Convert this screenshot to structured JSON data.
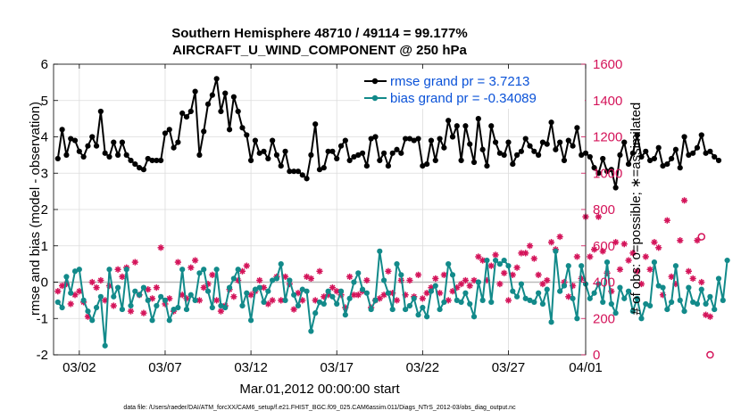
{
  "chart_data": {
    "type": "line",
    "title": "Southern Hemisphere 48710 / 49114 = 99.177%",
    "subtitle": "AIRCRAFT_U_WIND_COMPONENT @ 250 hPa",
    "xlabel": "Mar.01,2012 00:00:00 start",
    "ylabel": "rmse and bias (model - observation)",
    "y2label": "# of obs: o=possible; ∗=assimilated",
    "xlim": [
      1.5,
      32.5
    ],
    "ylim": [
      -2,
      6
    ],
    "y2lim": [
      0,
      1600
    ],
    "x_ticks": [
      {
        "x": 3,
        "label": "03/02"
      },
      {
        "x": 8,
        "label": "03/07"
      },
      {
        "x": 13,
        "label": "03/12"
      },
      {
        "x": 18,
        "label": "03/17"
      },
      {
        "x": 23,
        "label": "03/22"
      },
      {
        "x": 28,
        "label": "03/27"
      },
      {
        "x": 32.5,
        "label": "04/01"
      }
    ],
    "y_ticks": [
      -2,
      -1,
      0,
      1,
      2,
      3,
      4,
      5,
      6
    ],
    "y2_ticks": [
      0,
      200,
      400,
      600,
      800,
      1000,
      1200,
      1400,
      1600
    ],
    "colors": {
      "rmse": "#000000",
      "bias": "#128a8a",
      "obs": "#d4145a",
      "zero": "#bbbbbb",
      "grid": "#dcdcdc",
      "legend_text": "#0a52d8"
    },
    "legend": [
      {
        "label": "rmse grand pr = 3.7213",
        "series": "rmse"
      },
      {
        "label": "bias grand pr = -0.34089",
        "series": "bias"
      }
    ],
    "x_start": 1.75,
    "x_step": 0.25,
    "series": [
      {
        "name": "rmse",
        "axis": "left",
        "values": [
          3.4,
          4.2,
          3.5,
          3.95,
          3.9,
          3.6,
          3.45,
          3.75,
          4.0,
          3.75,
          4.7,
          3.55,
          3.45,
          3.85,
          3.5,
          3.85,
          3.5,
          3.35,
          3.25,
          3.15,
          3.1,
          3.4,
          3.35,
          3.35,
          3.35,
          4.1,
          4.2,
          3.7,
          3.85,
          4.65,
          4.55,
          4.7,
          5.25,
          3.5,
          4.15,
          4.9,
          5.15,
          5.6,
          4.7,
          5.2,
          4.2,
          5.1,
          4.7,
          4.25,
          4.05,
          3.35,
          3.9,
          3.55,
          3.6,
          3.4,
          3.9,
          3.5,
          3.2,
          3.6,
          3.05,
          3.05,
          3.05,
          2.95,
          2.85,
          3.5,
          4.35,
          3.1,
          3.15,
          3.6,
          3.6,
          3.4,
          3.75,
          3.9,
          3.35,
          3.45,
          3.5,
          3.55,
          3.2,
          3.95,
          4.0,
          3.35,
          3.55,
          3.2,
          3.55,
          3.65,
          3.55,
          3.95,
          3.95,
          3.9,
          3.95,
          3.2,
          3.25,
          3.9,
          3.35,
          3.95,
          3.7,
          4.45,
          4.0,
          4.3,
          3.35,
          4.3,
          3.8,
          3.3,
          4.5,
          3.65,
          3.2,
          4.3,
          3.85,
          3.55,
          3.5,
          3.85,
          3.25,
          3.5,
          3.6,
          3.95,
          3.75,
          3.6,
          3.5,
          3.85,
          3.8,
          4.4,
          3.65,
          3.85,
          3.35,
          3.9,
          3.75,
          4.25,
          3.5,
          3.55,
          3.45,
          3.15,
          3.0,
          3.4,
          3.05,
          3.1,
          2.6,
          3.5,
          3.85,
          3.25,
          3.55,
          4.05,
          3.45,
          3.6,
          3.35,
          3.4,
          3.7,
          3.2,
          3.25,
          3.4,
          3.65,
          3.15,
          4.0,
          3.5,
          3.55,
          3.7,
          4.05,
          3.55,
          3.6,
          3.45,
          3.35
        ]
      },
      {
        "name": "bias",
        "axis": "left",
        "values": [
          -0.55,
          -0.7,
          0.15,
          -0.3,
          0.3,
          0.35,
          -0.5,
          -0.8,
          -1.05,
          -0.7,
          -0.4,
          -1.75,
          0.35,
          -0.4,
          -0.15,
          -0.75,
          0.35,
          -0.65,
          -0.25,
          -0.35,
          -0.15,
          -0.5,
          -1.05,
          -0.65,
          -0.4,
          -0.5,
          -1.05,
          -0.75,
          -0.7,
          0.35,
          -0.75,
          -0.35,
          -0.5,
          0.25,
          0.35,
          -0.25,
          -0.7,
          0.35,
          -0.65,
          -0.7,
          -0.15,
          0.1,
          0.35,
          -0.65,
          -0.3,
          -1.05,
          -0.2,
          -0.15,
          -0.55,
          -0.25,
          0.05,
          0.1,
          0.5,
          -0.5,
          0.05,
          -0.35,
          -0.65,
          -0.2,
          -0.25,
          -1.35,
          -0.85,
          -0.55,
          -0.6,
          -0.25,
          -0.4,
          -0.6,
          -0.25,
          -0.9,
          -0.45,
          0.0,
          0.25,
          -0.2,
          -0.3,
          -0.75,
          -0.5,
          0.85,
          0.05,
          -0.3,
          -0.75,
          0.5,
          0.2,
          -0.75,
          -0.65,
          -0.45,
          -0.9,
          -0.7,
          -0.95,
          -0.25,
          -0.1,
          -0.75,
          -0.55,
          0.5,
          0.2,
          -0.5,
          -0.55,
          -0.3,
          -0.6,
          -0.95,
          0.0,
          -0.5,
          0.6,
          -0.55,
          0.6,
          0.5,
          0.6,
          0.45,
          -0.25,
          -0.4,
          -0.05,
          -0.45,
          -0.5,
          -0.55,
          -0.3,
          -0.6,
          -0.2,
          -1.1,
          0.85,
          -0.25,
          -0.1,
          0.45,
          -0.45,
          -1.0,
          0.45,
          -0.05,
          -0.45,
          -0.3,
          -0.05,
          -0.55,
          0.55,
          -0.6,
          -0.85,
          -0.15,
          -0.45,
          -0.25,
          -0.8,
          -0.45,
          -1.0,
          -0.6,
          -0.65,
          0.55,
          -0.1,
          -0.15,
          -0.75,
          -0.55,
          0.45,
          -0.5,
          -0.8,
          -0.15,
          -0.55,
          -0.6,
          -0.2,
          -0.6,
          -0.4,
          -0.75,
          0.1,
          -0.5,
          0.6
        ]
      },
      {
        "name": "obs_assimilated",
        "axis": "right",
        "values": [
          350,
          380,
          390,
          280,
          330,
          350,
          290,
          210,
          400,
          370,
          410,
          300,
          380,
          270,
          470,
          430,
          480,
          240,
          510,
          330,
          230,
          360,
          310,
          370,
          590,
          280,
          310,
          240,
          510,
          330,
          310,
          480,
          520,
          300,
          370,
          390,
          440,
          300,
          240,
          270,
          360,
          320,
          410,
          460,
          490,
          330,
          350,
          410,
          370,
          280,
          300,
          430,
          300,
          430,
          390,
          250,
          340,
          300,
          430,
          420,
          300,
          460,
          320,
          330,
          370,
          350,
          330,
          260,
          430,
          330,
          330,
          350,
          410,
          260,
          300,
          310,
          330,
          460,
          340,
          300,
          410,
          330,
          410,
          320,
          440,
          310,
          340,
          370,
          420,
          340,
          440,
          300,
          350,
          370,
          390,
          410,
          380,
          410,
          540,
          520,
          410,
          490,
          550,
          390,
          450,
          300,
          440,
          480,
          560,
          560,
          600,
          530,
          440,
          390,
          410,
          620,
          580,
          650,
          400,
          320,
          380,
          540,
          420,
          760,
          540,
          580,
          760,
          570,
          450,
          350,
          620,
          470,
          610,
          520,
          560,
          460,
          390,
          540,
          470,
          620,
          590,
          330,
          740,
          430,
          390,
          630,
          850,
          460,
          420,
          630,
          400,
          220,
          210
        ]
      },
      {
        "name": "obs_possible",
        "axis": "right",
        "values": [
          null,
          null,
          null,
          null,
          null,
          null,
          null,
          null,
          null,
          null,
          null,
          null,
          null,
          null,
          null,
          null,
          null,
          null,
          null,
          null,
          null,
          null,
          null,
          null,
          null,
          null,
          null,
          null,
          null,
          null,
          null,
          null,
          null,
          null,
          null,
          null,
          null,
          null,
          null,
          null,
          null,
          null,
          null,
          null,
          null,
          null,
          null,
          null,
          null,
          null,
          null,
          null,
          null,
          null,
          null,
          null,
          null,
          null,
          null,
          null,
          null,
          null,
          null,
          null,
          null,
          null,
          null,
          null,
          null,
          null,
          null,
          null,
          null,
          null,
          null,
          null,
          null,
          null,
          null,
          null,
          null,
          null,
          null,
          null,
          null,
          null,
          null,
          null,
          null,
          null,
          null,
          null,
          null,
          null,
          null,
          null,
          null,
          null,
          null,
          null,
          null,
          null,
          null,
          null,
          null,
          null,
          null,
          null,
          null,
          null,
          null,
          null,
          null,
          null,
          null,
          null,
          null,
          null,
          null,
          null,
          null,
          null,
          null,
          null,
          null,
          null,
          null,
          null,
          null,
          null,
          null,
          null,
          null,
          null,
          null,
          null,
          null,
          null,
          null,
          null,
          null,
          null,
          null,
          null,
          null,
          null,
          null,
          null,
          null,
          null,
          650,
          null,
          0
        ]
      }
    ]
  },
  "footer": "data file: /Users/raeder/DAI/ATM_forcXX/CAM6_setup/f.e21.FHIST_BGC.f09_025.CAM6assim.011/Diags_NTrS_2012-03/obs_diag_output.nc"
}
